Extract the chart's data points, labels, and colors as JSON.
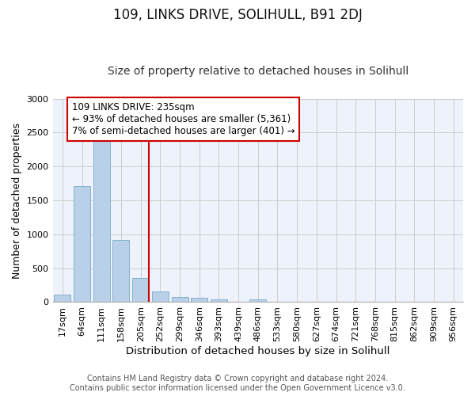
{
  "title1": "109, LINKS DRIVE, SOLIHULL, B91 2DJ",
  "title2": "Size of property relative to detached houses in Solihull",
  "xlabel": "Distribution of detached houses by size in Solihull",
  "ylabel": "Number of detached properties",
  "bin_labels": [
    "17sqm",
    "64sqm",
    "111sqm",
    "158sqm",
    "205sqm",
    "252sqm",
    "299sqm",
    "346sqm",
    "393sqm",
    "439sqm",
    "486sqm",
    "533sqm",
    "580sqm",
    "627sqm",
    "674sqm",
    "721sqm",
    "768sqm",
    "815sqm",
    "862sqm",
    "909sqm",
    "956sqm"
  ],
  "bar_values": [
    110,
    1710,
    2390,
    920,
    350,
    155,
    80,
    60,
    40,
    0,
    35,
    0,
    0,
    0,
    0,
    0,
    0,
    0,
    0,
    0,
    0
  ],
  "bar_color": "#b8d0e8",
  "bar_edgecolor": "#7aaac8",
  "vline_x": 4.42,
  "annotation_line1": "109 LINKS DRIVE: 235sqm",
  "annotation_line2": "← 93% of detached houses are smaller (5,361)",
  "annotation_line3": "7% of semi-detached houses are larger (401) →",
  "annotation_box_color": "#ffffff",
  "annotation_box_edgecolor": "#cc0000",
  "vline_color": "#cc0000",
  "ylim": [
    0,
    3000
  ],
  "yticks": [
    0,
    500,
    1000,
    1500,
    2000,
    2500,
    3000
  ],
  "grid_color": "#cccccc",
  "bg_color": "#eef2fa",
  "footer_line1": "Contains HM Land Registry data © Crown copyright and database right 2024.",
  "footer_line2": "Contains public sector information licensed under the Open Government Licence v3.0.",
  "title1_fontsize": 12,
  "title2_fontsize": 10,
  "xlabel_fontsize": 9.5,
  "ylabel_fontsize": 9,
  "tick_fontsize": 8,
  "annotation_fontsize": 8.5,
  "footer_fontsize": 7
}
